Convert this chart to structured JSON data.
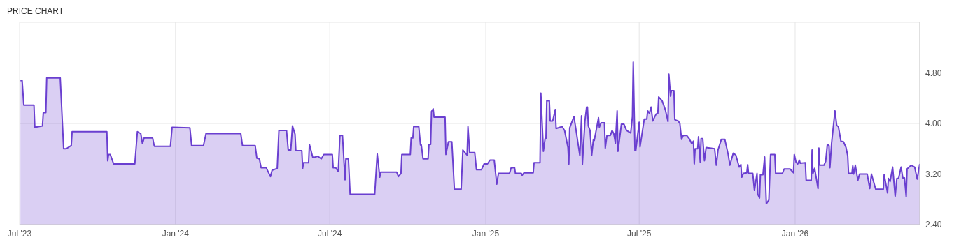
{
  "chart_data": {
    "type": "area",
    "title": "PRICE CHART",
    "x": [
      "2023-07-02",
      "2023-07-04",
      "2023-07-06",
      "2023-07-18",
      "2023-07-19",
      "2023-07-28",
      "2023-07-29",
      "2023-08-01",
      "2023-08-02",
      "2023-08-18",
      "2023-08-22",
      "2023-08-25",
      "2023-08-31",
      "2023-09-01",
      "2023-10-12",
      "2023-10-13",
      "2023-10-14",
      "2023-10-16",
      "2023-10-20",
      "2023-11-14",
      "2023-11-17",
      "2023-11-21",
      "2023-11-23",
      "2023-11-25",
      "2023-12-05",
      "2023-12-07",
      "2023-12-26",
      "2023-12-28",
      "2024-01-18",
      "2024-01-20",
      "2024-02-03",
      "2024-02-06",
      "2024-03-18",
      "2024-03-20",
      "2024-04-04",
      "2024-04-06",
      "2024-04-09",
      "2024-04-11",
      "2024-04-17",
      "2024-04-22",
      "2024-04-24",
      "2024-04-30",
      "2024-05-02",
      "2024-05-11",
      "2024-05-13",
      "2024-05-16",
      "2024-05-18",
      "2024-05-21",
      "2024-05-22",
      "2024-05-29",
      "2024-05-30",
      "2024-05-31",
      "2024-06-06",
      "2024-06-07",
      "2024-06-11",
      "2024-06-17",
      "2024-06-21",
      "2024-06-24",
      "2024-07-04",
      "2024-07-05",
      "2024-07-08",
      "2024-07-11",
      "2024-07-13",
      "2024-07-16",
      "2024-07-19",
      "2024-07-20",
      "2024-07-23",
      "2024-07-25",
      "2024-08-23",
      "2024-08-26",
      "2024-08-29",
      "2024-08-30",
      "2024-09-18",
      "2024-09-20",
      "2024-09-23",
      "2024-09-24",
      "2024-10-04",
      "2024-10-05",
      "2024-10-07",
      "2024-10-08",
      "2024-10-14",
      "2024-10-16",
      "2024-10-17",
      "2024-10-19",
      "2024-10-25",
      "2024-10-26",
      "2024-10-28",
      "2024-10-29",
      "2024-10-31",
      "2024-11-01",
      "2024-11-14",
      "2024-11-15",
      "2024-11-18",
      "2024-11-22",
      "2024-11-25",
      "2024-12-03",
      "2024-12-05",
      "2024-12-10",
      "2024-12-11",
      "2024-12-13",
      "2024-12-19",
      "2024-12-21",
      "2024-12-27",
      "2024-12-30",
      "2025-01-03",
      "2025-01-06",
      "2025-01-11",
      "2025-01-14",
      "2025-01-16",
      "2025-01-29",
      "2025-01-31",
      "2025-02-04",
      "2025-02-05",
      "2025-02-12",
      "2025-02-13",
      "2025-02-15",
      "2025-02-26",
      "2025-02-27",
      "2025-03-06",
      "2025-03-07",
      "2025-03-10",
      "2025-03-12",
      "2025-03-13",
      "2025-03-14",
      "2025-03-17",
      "2025-03-18",
      "2025-03-21",
      "2025-03-24",
      "2025-03-25",
      "2025-04-01",
      "2025-04-04",
      "2025-04-08",
      "2025-04-09",
      "2025-04-10",
      "2025-04-15",
      "2025-04-17",
      "2025-04-22",
      "2025-04-24",
      "2025-04-25",
      "2025-04-28",
      "2025-04-30",
      "2025-05-01",
      "2025-05-02",
      "2025-05-04",
      "2025-05-06",
      "2025-05-08",
      "2025-05-09",
      "2025-05-14",
      "2025-05-15",
      "2025-05-17",
      "2025-05-21",
      "2025-05-22",
      "2025-05-24",
      "2025-05-28",
      "2025-05-30",
      "2025-06-01",
      "2025-06-03",
      "2025-06-05",
      "2025-06-06",
      "2025-06-10",
      "2025-06-13",
      "2025-06-16",
      "2025-06-21",
      "2025-06-23",
      "2025-06-24",
      "2025-06-26",
      "2025-06-27",
      "2025-07-01",
      "2025-07-02",
      "2025-07-07",
      "2025-07-10",
      "2025-07-11",
      "2025-07-13",
      "2025-07-15",
      "2025-07-17",
      "2025-07-21",
      "2025-07-23",
      "2025-07-24",
      "2025-07-28",
      "2025-07-31",
      "2025-08-01",
      "2025-08-04",
      "2025-08-05",
      "2025-08-07",
      "2025-08-08",
      "2025-08-11",
      "2025-08-12",
      "2025-08-16",
      "2025-08-18",
      "2025-08-20",
      "2025-08-22",
      "2025-08-26",
      "2025-08-29",
      "2025-09-01",
      "2025-09-03",
      "2025-09-04",
      "2025-09-05",
      "2025-09-08",
      "2025-09-09",
      "2025-09-11",
      "2025-09-12",
      "2025-09-14",
      "2025-09-16",
      "2025-09-18",
      "2025-09-28",
      "2025-09-30",
      "2025-10-02",
      "2025-10-06",
      "2025-10-10",
      "2025-10-14",
      "2025-10-16",
      "2025-10-20",
      "2025-10-23",
      "2025-10-27",
      "2025-10-29",
      "2025-10-30",
      "2025-11-01",
      "2025-11-05",
      "2025-11-06",
      "2025-11-07",
      "2025-11-12",
      "2025-11-14",
      "2025-11-17",
      "2025-11-18",
      "2025-11-20",
      "2025-11-21",
      "2025-11-24",
      "2025-11-26",
      "2025-11-28",
      "2025-12-01",
      "2025-12-03",
      "2025-12-08",
      "2025-12-09",
      "2025-12-17",
      "2025-12-19",
      "2025-12-26",
      "2025-12-30",
      "2025-12-31",
      "2026-01-02",
      "2026-01-04",
      "2026-01-06",
      "2026-01-07",
      "2026-01-13",
      "2026-01-14",
      "2026-01-20",
      "2026-01-21",
      "2026-01-22",
      "2026-01-24",
      "2026-01-28",
      "2026-01-29",
      "2026-01-30",
      "2026-02-04",
      "2026-02-06",
      "2026-02-08",
      "2026-02-10",
      "2026-02-11",
      "2026-02-13",
      "2026-02-17",
      "2026-02-19",
      "2026-02-21",
      "2026-02-24",
      "2026-02-27",
      "2026-03-02",
      "2026-03-04",
      "2026-03-05",
      "2026-03-09",
      "2026-03-10",
      "2026-03-11",
      "2026-03-13",
      "2026-03-16",
      "2026-03-18",
      "2026-03-27",
      "2026-03-30",
      "2026-04-01",
      "2026-04-06",
      "2026-04-15",
      "2026-04-16",
      "2026-04-20",
      "2026-04-21",
      "2026-04-23",
      "2026-04-26",
      "2026-04-29",
      "2026-05-01",
      "2026-05-03",
      "2026-05-06",
      "2026-05-08",
      "2026-05-10",
      "2026-05-12",
      "2026-05-13",
      "2026-05-18",
      "2026-05-22",
      "2026-05-25",
      "2026-05-28"
    ],
    "series": [
      {
        "color": "#6a3fd0",
        "values": [
          4.68,
          4.68,
          4.29,
          4.29,
          3.94,
          3.96,
          4.17,
          4.17,
          4.72,
          4.72,
          3.6,
          3.6,
          3.65,
          3.87,
          3.87,
          3.41,
          3.51,
          3.51,
          3.36,
          3.36,
          3.87,
          3.84,
          3.68,
          3.77,
          3.77,
          3.64,
          3.64,
          3.94,
          3.93,
          3.65,
          3.65,
          3.84,
          3.84,
          3.65,
          3.65,
          3.45,
          3.44,
          3.3,
          3.3,
          3.16,
          3.26,
          3.29,
          3.89,
          3.89,
          3.58,
          3.58,
          3.96,
          3.83,
          3.57,
          3.57,
          3.29,
          3.38,
          3.38,
          3.67,
          3.46,
          3.48,
          3.44,
          3.51,
          3.51,
          3.3,
          3.3,
          3.24,
          3.81,
          3.81,
          3.11,
          3.44,
          3.44,
          2.88,
          2.88,
          3.52,
          3.15,
          3.23,
          3.23,
          3.16,
          3.21,
          3.51,
          3.51,
          3.77,
          3.77,
          3.95,
          3.95,
          3.66,
          3.66,
          3.44,
          3.44,
          3.67,
          3.67,
          4.19,
          4.23,
          4.1,
          4.1,
          3.51,
          3.71,
          3.71,
          2.96,
          2.96,
          3.58,
          3.5,
          3.95,
          3.54,
          3.54,
          3.27,
          3.27,
          3.36,
          3.36,
          3.42,
          3.42,
          3.04,
          3.21,
          3.21,
          3.3,
          3.3,
          3.21,
          3.21,
          3.18,
          3.22,
          3.22,
          3.38,
          3.38,
          4.48,
          3.56,
          3.76,
          3.76,
          4.36,
          4.36,
          4.04,
          4.04,
          4.22,
          3.92,
          3.95,
          3.89,
          3.62,
          3.35,
          3.93,
          4.11,
          3.94,
          3.49,
          4.12,
          3.35,
          4.04,
          4.26,
          4.26,
          3.96,
          3.89,
          3.5,
          3.75,
          3.73,
          4.09,
          3.94,
          4.01,
          4.01,
          3.61,
          3.81,
          3.81,
          3.89,
          3.84,
          3.69,
          4.2,
          3.56,
          3.99,
          3.99,
          3.89,
          3.85,
          4.11,
          4.97,
          3.57,
          3.57,
          4.02,
          3.63,
          4.07,
          4.07,
          4.2,
          4.16,
          4.26,
          4.04,
          4.15,
          4.16,
          4.42,
          4.36,
          4.25,
          4.21,
          4.03,
          4.78,
          4.43,
          4.52,
          4.52,
          4.06,
          4.04,
          4.0,
          3.75,
          3.81,
          3.81,
          3.76,
          3.68,
          3.72,
          3.36,
          3.6,
          3.6,
          3.79,
          3.39,
          3.76,
          3.76,
          3.41,
          3.62,
          3.6,
          3.34,
          3.58,
          3.75,
          3.75,
          3.51,
          3.34,
          3.53,
          3.5,
          3.31,
          3.35,
          3.15,
          3.21,
          3.22,
          3.35,
          3.21,
          3.21,
          2.94,
          3.21,
          2.88,
          2.82,
          3.19,
          3.19,
          3.47,
          2.73,
          2.79,
          3.51,
          3.51,
          3.21,
          3.21,
          3.28,
          3.28,
          3.22,
          3.51,
          3.39,
          3.36,
          3.42,
          3.37,
          3.38,
          3.1,
          3.1,
          3.58,
          3.21,
          3.29,
          2.97,
          3.61,
          3.34,
          3.34,
          3.4,
          3.67,
          3.65,
          3.3,
          3.69,
          4.2,
          3.97,
          3.95,
          3.72,
          3.71,
          3.62,
          3.49,
          3.21,
          3.21,
          3.33,
          3.2,
          3.34,
          3.1,
          3.2,
          3.2,
          2.97,
          3.2,
          2.96,
          2.96,
          3.19,
          2.9,
          3.13,
          3.08,
          3.31,
          2.85,
          3.13,
          3.13,
          3.31,
          3.14,
          3.14,
          2.84,
          3.28,
          3.34,
          3.31,
          3.12,
          3.36
        ]
      }
    ],
    "xlim": [
      "2023-07-01",
      "2026-05-28"
    ],
    "xticks": [
      {
        "value": "2023-07-01",
        "label": "Jul '23"
      },
      {
        "value": "2024-01-01",
        "label": "Jan '24"
      },
      {
        "value": "2024-07-01",
        "label": "Jul '24"
      },
      {
        "value": "2025-01-01",
        "label": "Jan '25"
      },
      {
        "value": "2025-07-01",
        "label": "Jul '25"
      },
      {
        "value": "2026-01-01",
        "label": "Jan '26"
      }
    ],
    "ylim": [
      2.4,
      5.6
    ],
    "yticks": [
      {
        "value": 2.4,
        "label": "2.40"
      },
      {
        "value": 3.2,
        "label": "3.20"
      },
      {
        "value": 4.0,
        "label": "4.00"
      },
      {
        "value": 4.8,
        "label": "4.80"
      }
    ],
    "grid": true
  }
}
